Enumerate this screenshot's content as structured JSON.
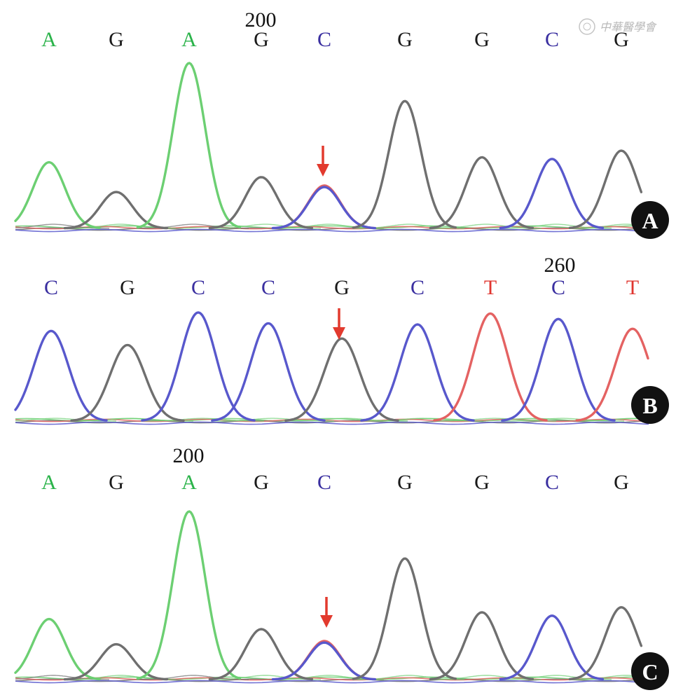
{
  "watermark": {
    "text": "中華醫學會"
  },
  "colors": {
    "A": "#2bb34a",
    "G": "#1a1a1a",
    "C": "#3a2fa0",
    "T": "#e0352f",
    "trace_A": "#6ccf72",
    "trace_G": "#6f6f6f",
    "trace_C": "#5858cc",
    "trace_T": "#e46262",
    "arrow": "#e23a2e"
  },
  "panels": [
    {
      "label": "A",
      "position_number": "200",
      "bases": [
        "A",
        "G",
        "A",
        "G",
        "C",
        "G",
        "G",
        "C",
        "G"
      ],
      "peak_heights": [
        0.4,
        0.22,
        1.0,
        0.31,
        0.25,
        0.77,
        0.43,
        0.42,
        0.47
      ],
      "secondary_peak": {
        "index": 4,
        "base": "T",
        "height": 0.26
      },
      "arrow_index": 4
    },
    {
      "label": "B",
      "position_number": "260",
      "bases": [
        "C",
        "G",
        "C",
        "C",
        "G",
        "C",
        "T",
        "C",
        "T"
      ],
      "peak_heights": [
        0.83,
        0.7,
        1.0,
        0.9,
        0.76,
        0.89,
        0.99,
        0.94,
        0.85
      ],
      "secondary_peak": null,
      "arrow_index": 4
    },
    {
      "label": "C",
      "position_number": "200",
      "bases": [
        "A",
        "G",
        "A",
        "G",
        "C",
        "G",
        "G",
        "C",
        "G"
      ],
      "peak_heights": [
        0.36,
        0.21,
        1.0,
        0.3,
        0.22,
        0.72,
        0.4,
        0.38,
        0.43
      ],
      "secondary_peak": {
        "index": 4,
        "base": "T",
        "height": 0.23
      },
      "arrow_index": 4
    }
  ]
}
